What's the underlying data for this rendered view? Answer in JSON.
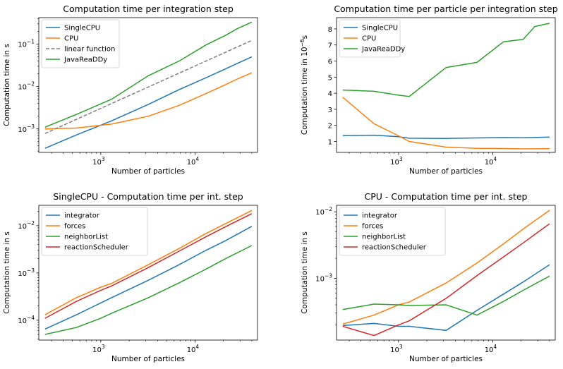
{
  "colors": {
    "blue": "#1f77b4",
    "orange": "#ff7f0e",
    "gray": "#7f7f7f",
    "green": "#2ca02c",
    "red": "#d62728"
  },
  "chart_data": [
    {
      "type": "line",
      "title": "Computation time per integration step",
      "xlabel": "Number of particles",
      "ylabel": "Computation time in s",
      "xscale": "log",
      "yscale": "log",
      "xlim": [
        220,
        46000
      ],
      "ylim": [
        0.00028,
        0.42
      ],
      "xticks": [
        {
          "v": 1000,
          "b": "10",
          "e": "3"
        },
        {
          "v": 10000,
          "b": "10",
          "e": "4"
        }
      ],
      "yticks": [
        {
          "v": 0.001,
          "b": "10",
          "e": "−3"
        },
        {
          "v": 0.01,
          "b": "10",
          "e": "−2"
        },
        {
          "v": 0.1,
          "b": "10",
          "e": "−1"
        }
      ],
      "legend": "upper-left",
      "series": [
        {
          "name": "SingleCPU",
          "color": "blue",
          "x": [
            256,
            550,
            1300,
            3200,
            6800,
            13000,
            21000,
            28000,
            40000
          ],
          "y": [
            0.00035,
            0.00072,
            0.00155,
            0.0038,
            0.0085,
            0.016,
            0.026,
            0.035,
            0.05
          ]
        },
        {
          "name": "CPU",
          "color": "orange",
          "x": [
            256,
            550,
            1300,
            3200,
            6800,
            13000,
            21000,
            28000,
            40000
          ],
          "y": [
            0.001,
            0.00105,
            0.0013,
            0.002,
            0.0036,
            0.0068,
            0.011,
            0.015,
            0.021
          ]
        },
        {
          "name": "linear function",
          "color": "gray",
          "dash": true,
          "x": [
            256,
            40000
          ],
          "y": [
            0.00078,
            0.122
          ]
        },
        {
          "name": "JavaReaDDy",
          "color": "green",
          "x": [
            256,
            550,
            1300,
            3200,
            6800,
            13000,
            21000,
            28000,
            40000
          ],
          "y": [
            0.0011,
            0.0022,
            0.005,
            0.018,
            0.04,
            0.095,
            0.16,
            0.23,
            0.33
          ]
        }
      ]
    },
    {
      "type": "line",
      "title": "Computation time per particle per integration step",
      "xlabel": "Number of particles",
      "ylabel_pre": "Computation time in 10",
      "ylabel_sup": "−6",
      "ylabel_post": "s",
      "xscale": "log",
      "yscale": "linear",
      "xlim": [
        220,
        46000
      ],
      "ylim": [
        0.32,
        8.7
      ],
      "xticks": [
        {
          "v": 1000,
          "b": "10",
          "e": "3"
        },
        {
          "v": 10000,
          "b": "10",
          "e": "4"
        }
      ],
      "yticks": [
        {
          "v": 1,
          "t": "1"
        },
        {
          "v": 2,
          "t": "2"
        },
        {
          "v": 3,
          "t": "3"
        },
        {
          "v": 4,
          "t": "4"
        },
        {
          "v": 5,
          "t": "5"
        },
        {
          "v": 6,
          "t": "6"
        },
        {
          "v": 7,
          "t": "7"
        },
        {
          "v": 8,
          "t": "8"
        }
      ],
      "legend": "upper-left",
      "series": [
        {
          "name": "SingleCPU",
          "color": "blue",
          "x": [
            256,
            550,
            1000,
            1300,
            3200,
            6800,
            13000,
            21000,
            40000
          ],
          "y": [
            1.37,
            1.39,
            1.3,
            1.2,
            1.19,
            1.22,
            1.24,
            1.23,
            1.27
          ]
        },
        {
          "name": "CPU",
          "color": "orange",
          "x": [
            256,
            550,
            1000,
            1300,
            3200,
            6800,
            13000,
            21000,
            40000
          ],
          "y": [
            3.75,
            2.1,
            1.35,
            1.0,
            0.65,
            0.57,
            0.56,
            0.54,
            0.55
          ]
        },
        {
          "name": "JavaReaDDy",
          "color": "green",
          "x": [
            256,
            550,
            1000,
            1300,
            3200,
            6800,
            13000,
            21000,
            28000,
            40000
          ],
          "y": [
            4.2,
            4.12,
            3.88,
            3.8,
            5.6,
            5.92,
            7.2,
            7.35,
            8.15,
            8.35
          ]
        }
      ]
    },
    {
      "type": "line",
      "title": "SingleCPU - Computation time per int. step",
      "xlabel": "Number of particles",
      "ylabel": "Computation time in s",
      "xscale": "log",
      "yscale": "log",
      "xlim": [
        220,
        46000
      ],
      "ylim": [
        3.8e-05,
        0.027
      ],
      "xticks": [
        {
          "v": 1000,
          "b": "10",
          "e": "3"
        },
        {
          "v": 10000,
          "b": "10",
          "e": "4"
        }
      ],
      "yticks": [
        {
          "v": 0.0001,
          "b": "10",
          "e": "−4"
        },
        {
          "v": 0.001,
          "b": "10",
          "e": "−3"
        },
        {
          "v": 0.01,
          "b": "10",
          "e": "−2"
        }
      ],
      "legend": "upper-left",
      "series": [
        {
          "name": "integrator",
          "color": "blue",
          "x": [
            256,
            550,
            1300,
            3200,
            6800,
            13000,
            21000,
            40000
          ],
          "y": [
            6.5e-05,
            0.00013,
            0.0003,
            0.0007,
            0.0015,
            0.003,
            0.0048,
            0.0097
          ]
        },
        {
          "name": "forces",
          "color": "orange",
          "x": [
            256,
            550,
            1000,
            1300,
            3200,
            6800,
            13000,
            21000,
            40000
          ],
          "y": [
            0.00013,
            0.0003,
            0.0005,
            0.0006,
            0.0015,
            0.0033,
            0.0068,
            0.011,
            0.021
          ]
        },
        {
          "name": "neighborList",
          "color": "green",
          "x": [
            256,
            550,
            1000,
            1300,
            3200,
            6800,
            13000,
            21000,
            40000
          ],
          "y": [
            5e-05,
            7e-05,
            0.00011,
            0.00014,
            0.0003,
            0.00062,
            0.0012,
            0.002,
            0.0038
          ]
        },
        {
          "name": "reactionScheduler",
          "color": "red",
          "x": [
            256,
            550,
            1000,
            1300,
            3200,
            6800,
            13000,
            21000,
            40000
          ],
          "y": [
            0.00011,
            0.00025,
            0.00043,
            0.00053,
            0.0013,
            0.0029,
            0.0058,
            0.0095,
            0.018
          ]
        }
      ]
    },
    {
      "type": "line",
      "title": "CPU - Computation time per int. step",
      "xlabel": "Number of particles",
      "ylabel": "Computation time in s",
      "xscale": "log",
      "yscale": "log",
      "xlim": [
        220,
        46000
      ],
      "ylim": [
        0.000118,
        0.0125
      ],
      "xticks": [
        {
          "v": 1000,
          "b": "10",
          "e": "3"
        },
        {
          "v": 10000,
          "b": "10",
          "e": "4"
        }
      ],
      "yticks": [
        {
          "v": 0.001,
          "b": "10",
          "e": "−3"
        },
        {
          "v": 0.01,
          "b": "10",
          "e": "−2"
        }
      ],
      "legend": "upper-left",
      "series": [
        {
          "name": "integrator",
          "color": "blue",
          "x": [
            256,
            550,
            1000,
            1300,
            3200,
            6800,
            13000,
            21000,
            40000
          ],
          "y": [
            0.000195,
            0.00021,
            0.00019,
            0.00019,
            0.000165,
            0.00033,
            0.00058,
            0.00088,
            0.0016
          ]
        },
        {
          "name": "forces",
          "color": "orange",
          "x": [
            256,
            550,
            1000,
            1300,
            3200,
            6800,
            13000,
            21000,
            40000
          ],
          "y": [
            0.000205,
            0.00028,
            0.0004,
            0.00044,
            0.00085,
            0.0017,
            0.0033,
            0.0055,
            0.0105
          ]
        },
        {
          "name": "neighborList",
          "color": "green",
          "x": [
            256,
            550,
            1000,
            1300,
            3200,
            6800,
            13000,
            21000,
            40000
          ],
          "y": [
            0.00034,
            0.00041,
            0.0004,
            0.00039,
            0.0004,
            0.00028,
            0.00045,
            0.00066,
            0.00108
          ]
        },
        {
          "name": "reactionScheduler",
          "color": "red",
          "x": [
            256,
            550,
            1000,
            1300,
            3200,
            6800,
            13000,
            21000,
            40000
          ],
          "y": [
            0.00019,
            0.000138,
            0.0002,
            0.00023,
            0.0005,
            0.0011,
            0.0021,
            0.0034,
            0.0066
          ]
        }
      ]
    }
  ]
}
